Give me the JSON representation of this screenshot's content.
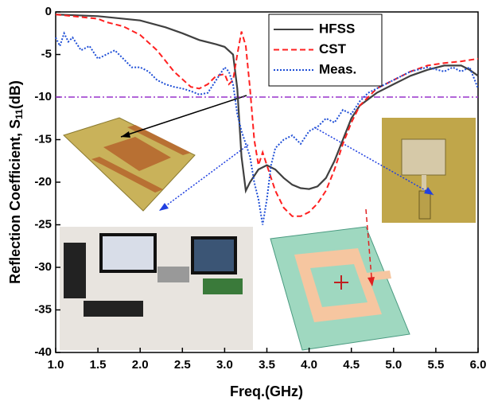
{
  "chart_data": {
    "type": "line",
    "xlabel": "Freq.(GHz)",
    "ylabel": [
      "Reflection Coefficient, S",
      "11",
      "(dB)"
    ],
    "xlim": [
      1.0,
      6.0
    ],
    "ylim": [
      -40,
      0
    ],
    "xticks": [
      {
        "value": 1.0,
        "label": "1.0"
      },
      1.5,
      {
        "value": 2.0,
        "label": "2.0"
      },
      2.5,
      {
        "value": 3.0,
        "label": "3.0"
      },
      3.5,
      {
        "value": 4.0,
        "label": "4.0"
      },
      4.5,
      {
        "value": 5.0,
        "label": "5.0"
      },
      5.5,
      {
        "value": 6.0,
        "label": "6.0"
      }
    ],
    "yticks": [
      0,
      -5,
      -10,
      -15,
      -20,
      -25,
      -30,
      -35,
      -40
    ],
    "reference_line": -10,
    "reference_color": "#9933cc",
    "legend": "upper right",
    "series": [
      {
        "name": "HFSS",
        "color": "#404040",
        "style": "solid",
        "x": [
          1.0,
          1.5,
          2.0,
          2.3,
          2.5,
          2.7,
          2.9,
          3.0,
          3.1,
          3.15,
          3.2,
          3.25,
          3.3,
          3.4,
          3.5,
          3.6,
          3.7,
          3.8,
          3.9,
          4.0,
          4.1,
          4.2,
          4.3,
          4.4,
          4.5,
          4.6,
          4.8,
          5.0,
          5.2,
          5.4,
          5.6,
          5.8,
          5.9,
          6.0
        ],
        "values": [
          -0.3,
          -0.5,
          -1.0,
          -1.8,
          -2.5,
          -3.3,
          -3.8,
          -4.1,
          -5,
          -9,
          -17,
          -21,
          -20,
          -18.5,
          -18,
          -18.5,
          -19.5,
          -20.3,
          -20.7,
          -20.8,
          -20.5,
          -19.5,
          -17.5,
          -15,
          -12.5,
          -11,
          -9.5,
          -8.5,
          -7.5,
          -6.8,
          -6.3,
          -6.3,
          -6.8,
          -7.5
        ]
      },
      {
        "name": "CST",
        "color": "#ff2020",
        "style": "dashed",
        "x": [
          1.0,
          1.5,
          1.6,
          1.8,
          2.0,
          2.2,
          2.4,
          2.6,
          2.7,
          2.8,
          2.9,
          3.0,
          3.05,
          3.1,
          3.15,
          3.2,
          3.25,
          3.3,
          3.35,
          3.4,
          3.45,
          3.5,
          3.6,
          3.7,
          3.8,
          3.9,
          4.0,
          4.1,
          4.2,
          4.3,
          4.4,
          4.5,
          4.6,
          4.8,
          5.0,
          5.2,
          5.4,
          5.6,
          5.8,
          6.0
        ],
        "values": [
          -0.3,
          -0.8,
          -1.2,
          -1.7,
          -2.7,
          -4.5,
          -7,
          -8.8,
          -9,
          -8.5,
          -7.5,
          -7.3,
          -8.5,
          -8,
          -5,
          -2.3,
          -4,
          -9,
          -15,
          -18,
          -16.5,
          -18,
          -21,
          -23,
          -24,
          -24,
          -23.5,
          -22.5,
          -21,
          -18.5,
          -15.5,
          -13,
          -11,
          -9,
          -8,
          -7,
          -6.3,
          -6,
          -5.8,
          -5.5
        ]
      },
      {
        "name": "Meas.",
        "color": "#1f4fd6",
        "style": "dotted",
        "x": [
          1.0,
          1.05,
          1.1,
          1.15,
          1.2,
          1.3,
          1.4,
          1.5,
          1.6,
          1.7,
          1.8,
          1.9,
          2.0,
          2.1,
          2.2,
          2.3,
          2.4,
          2.5,
          2.6,
          2.7,
          2.8,
          2.9,
          3.0,
          3.05,
          3.1,
          3.15,
          3.2,
          3.3,
          3.35,
          3.4,
          3.45,
          3.5,
          3.55,
          3.6,
          3.7,
          3.8,
          3.9,
          4.0,
          4.1,
          4.2,
          4.3,
          4.4,
          4.5,
          4.6,
          4.7,
          4.8,
          5.0,
          5.2,
          5.4,
          5.6,
          5.7,
          5.8,
          5.9,
          6.0
        ],
        "values": [
          -3,
          -4,
          -2.5,
          -3.5,
          -3,
          -4.5,
          -4,
          -5.5,
          -5,
          -4.5,
          -5.5,
          -6.5,
          -6.5,
          -7,
          -8,
          -8.5,
          -8.8,
          -9,
          -9.3,
          -9.7,
          -9.5,
          -8,
          -6.5,
          -7,
          -8.5,
          -12,
          -14,
          -17,
          -20,
          -22,
          -25,
          -22,
          -18,
          -16,
          -15,
          -14.5,
          -15.5,
          -14,
          -13.5,
          -12.5,
          -13,
          -11.5,
          -12,
          -10.5,
          -9.5,
          -9,
          -8,
          -7,
          -6.5,
          -7,
          -6.5,
          -7,
          -6.5,
          -9
        ]
      }
    ]
  }
}
